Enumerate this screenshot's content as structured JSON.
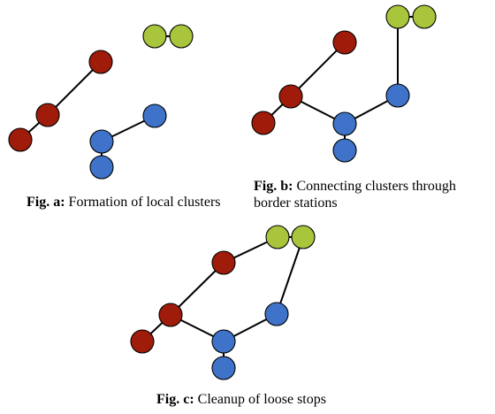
{
  "colors": {
    "red": "#a01c0a",
    "blue": "#3e73c9",
    "green": "#a8c53c",
    "edge": "#000000"
  },
  "figures": [
    {
      "id": "a",
      "caption": {
        "label": "Fig. a:",
        "text": "Formation of local clusters"
      },
      "nodes": [
        {
          "id": "g1",
          "color": "green"
        },
        {
          "id": "g2",
          "color": "green"
        },
        {
          "id": "r1",
          "color": "red"
        },
        {
          "id": "r2",
          "color": "red"
        },
        {
          "id": "r3",
          "color": "red"
        },
        {
          "id": "b1",
          "color": "blue"
        },
        {
          "id": "b2",
          "color": "blue"
        },
        {
          "id": "b3",
          "color": "blue"
        }
      ],
      "edges": [
        [
          "r1",
          "r2"
        ],
        [
          "r2",
          "r3"
        ],
        [
          "b1",
          "b2"
        ],
        [
          "b2",
          "b3"
        ],
        [
          "g1",
          "g2"
        ]
      ]
    },
    {
      "id": "b",
      "caption": {
        "label": "Fig. b:",
        "text": "Connecting clusters through",
        "text2": "border stations"
      },
      "nodes": [
        {
          "id": "g1",
          "color": "green"
        },
        {
          "id": "g2",
          "color": "green"
        },
        {
          "id": "r1",
          "color": "red"
        },
        {
          "id": "r2",
          "color": "red"
        },
        {
          "id": "r3",
          "color": "red"
        },
        {
          "id": "b1",
          "color": "blue"
        },
        {
          "id": "b2",
          "color": "blue"
        },
        {
          "id": "b3",
          "color": "blue"
        }
      ],
      "edges": [
        [
          "r1",
          "r2"
        ],
        [
          "r2",
          "r3"
        ],
        [
          "r2",
          "b2"
        ],
        [
          "b2",
          "b3"
        ],
        [
          "b2",
          "b1"
        ],
        [
          "b1",
          "g1"
        ],
        [
          "g1",
          "g2"
        ]
      ]
    },
    {
      "id": "c",
      "caption": {
        "label": "Fig. c:",
        "text": "Cleanup of loose stops"
      },
      "nodes": [
        {
          "id": "g1",
          "color": "green"
        },
        {
          "id": "g2",
          "color": "green"
        },
        {
          "id": "r1",
          "color": "red"
        },
        {
          "id": "r2",
          "color": "red"
        },
        {
          "id": "r3",
          "color": "red"
        },
        {
          "id": "b1",
          "color": "blue"
        },
        {
          "id": "b2",
          "color": "blue"
        },
        {
          "id": "b3",
          "color": "blue"
        }
      ],
      "edges": [
        [
          "r1",
          "r2"
        ],
        [
          "r2",
          "r3"
        ],
        [
          "r2",
          "b2"
        ],
        [
          "b2",
          "b3"
        ],
        [
          "b2",
          "b1"
        ],
        [
          "b1",
          "g2"
        ],
        [
          "r1",
          "g1"
        ],
        [
          "g1",
          "g2"
        ]
      ]
    }
  ]
}
